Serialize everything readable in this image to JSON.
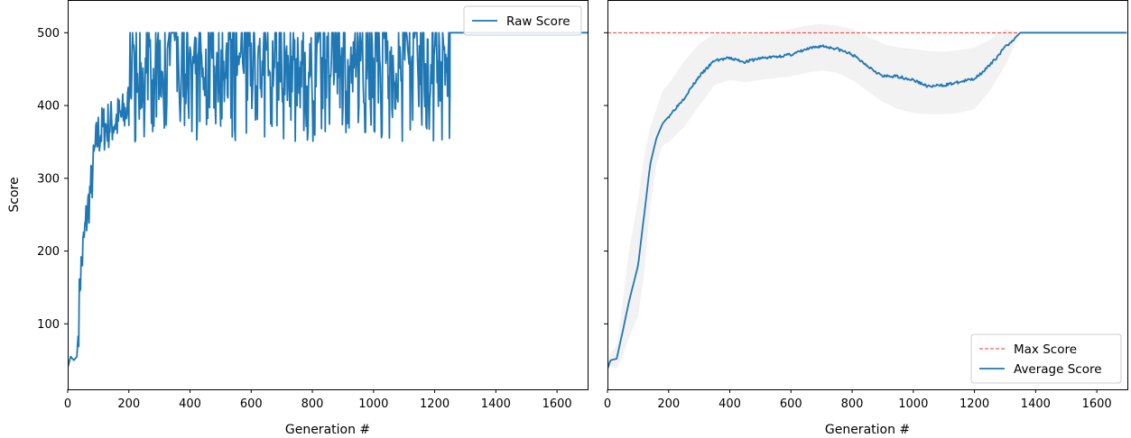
{
  "chart_data": [
    {
      "type": "line",
      "xlabel": "Generation #",
      "ylabel": "Score",
      "xlim": [
        0,
        1700
      ],
      "ylim": [
        10,
        545
      ],
      "xticks": [
        0,
        200,
        400,
        600,
        800,
        1000,
        1200,
        1400,
        1600
      ],
      "yticks": [
        100,
        200,
        300,
        400,
        500
      ],
      "legend": {
        "placement": "top-right",
        "entries": [
          "Raw Score"
        ]
      },
      "series": [
        {
          "name": "Raw Score",
          "color": "#1f77b4",
          "x_range": [
            0,
            1700
          ],
          "phases": [
            {
              "x": [
                0,
                10,
                20,
                30,
                35,
                40,
                50,
                60,
                70,
                80,
                90,
                100,
                120,
                140,
                160,
                180,
                200
              ],
              "y": [
                40,
                55,
                50,
                55,
                90,
                160,
                200,
                240,
                270,
                300,
                340,
                360,
                370,
                375,
                380,
                385,
                400
              ]
            },
            {
              "x_range": [
                200,
                1250
              ],
              "low": 350,
              "high": 500,
              "typical": 440,
              "note": "oscillating"
            },
            {
              "x_range": [
                1250,
                1700
              ],
              "constant": 500
            }
          ]
        }
      ]
    },
    {
      "type": "line",
      "xlabel": "Generation #",
      "ylabel": "",
      "xlim": [
        0,
        1700
      ],
      "ylim": [
        10,
        545
      ],
      "xticks": [
        0,
        200,
        400,
        600,
        800,
        1000,
        1200,
        1400,
        1600
      ],
      "yticks": [
        100,
        200,
        300,
        400,
        500
      ],
      "legend": {
        "placement": "bottom-right",
        "entries": [
          "Max Score",
          "Average Score"
        ]
      },
      "reference_line": {
        "name": "Max Score",
        "y": 500,
        "color": "#ff0000",
        "style": "dashed"
      },
      "series": [
        {
          "name": "Average Score",
          "color": "#1f77b4",
          "x": [
            0,
            10,
            30,
            50,
            70,
            100,
            120,
            140,
            160,
            180,
            200,
            250,
            300,
            350,
            400,
            450,
            500,
            550,
            600,
            650,
            700,
            750,
            800,
            850,
            900,
            950,
            1000,
            1050,
            1100,
            1150,
            1200,
            1250,
            1300,
            1350,
            1400,
            1500,
            1600,
            1700
          ],
          "y": [
            38,
            50,
            52,
            90,
            130,
            180,
            250,
            320,
            355,
            375,
            385,
            410,
            440,
            462,
            465,
            460,
            465,
            467,
            470,
            477,
            482,
            478,
            470,
            455,
            440,
            440,
            435,
            426,
            428,
            432,
            437,
            455,
            480,
            500,
            500,
            500,
            500,
            500
          ],
          "band_upper": [
            45,
            60,
            70,
            130,
            200,
            270,
            330,
            370,
            395,
            420,
            430,
            460,
            485,
            498,
            500,
            497,
            500,
            502,
            505,
            510,
            512,
            510,
            505,
            495,
            485,
            480,
            478,
            475,
            474,
            476,
            480,
            490,
            505,
            500,
            500,
            500,
            500,
            500
          ],
          "band_lower": [
            35,
            42,
            38,
            55,
            80,
            110,
            170,
            260,
            320,
            345,
            350,
            370,
            400,
            428,
            435,
            432,
            435,
            438,
            440,
            445,
            448,
            445,
            435,
            420,
            405,
            395,
            390,
            388,
            388,
            390,
            395,
            420,
            455,
            500,
            500,
            500,
            500,
            500
          ],
          "band_color": "#f2f2f2"
        }
      ]
    }
  ]
}
